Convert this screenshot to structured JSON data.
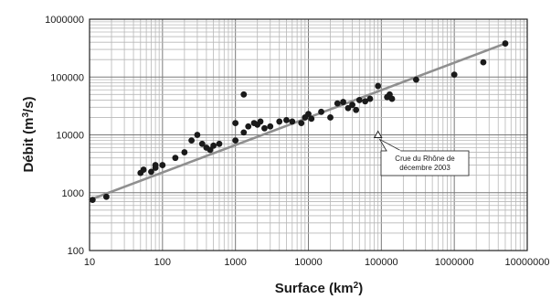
{
  "chart_data": {
    "type": "scatter",
    "title": "",
    "xlabel": "Surface",
    "xlabel_unit_base": "km",
    "xlabel_unit_exp": "2",
    "ylabel": "Débit",
    "ylabel_unit_base": "m",
    "ylabel_unit_exp": "3",
    "ylabel_unit_tail": "/s",
    "x_scale": "log",
    "y_scale": "log",
    "xlim": [
      10,
      10000000
    ],
    "ylim": [
      100,
      1000000
    ],
    "x_ticks": [
      "10",
      "100",
      "1000",
      "10000",
      "100000",
      "1000000",
      "10000000"
    ],
    "y_ticks": [
      "100",
      "1000",
      "10000",
      "100000",
      "1000000"
    ],
    "grid": true,
    "colors": {
      "points": "#1a1a1a",
      "trend": "#8f8f8f",
      "grid": "#b8b8b8",
      "axis": "#222222"
    },
    "series": [
      {
        "points": [
          [
            11,
            750
          ],
          [
            17,
            850
          ],
          [
            50,
            2200
          ],
          [
            55,
            2500
          ],
          [
            70,
            2300
          ],
          [
            80,
            2700
          ],
          [
            80,
            3000
          ],
          [
            100,
            3000
          ],
          [
            150,
            4000
          ],
          [
            200,
            5000
          ],
          [
            250,
            8000
          ],
          [
            300,
            10000
          ],
          [
            350,
            7000
          ],
          [
            400,
            6000
          ],
          [
            450,
            5500
          ],
          [
            500,
            6500
          ],
          [
            600,
            7000
          ],
          [
            1000,
            8000
          ],
          [
            1000,
            16000
          ],
          [
            1300,
            50000
          ],
          [
            1300,
            11000
          ],
          [
            1500,
            14000
          ],
          [
            1800,
            16000
          ],
          [
            2000,
            15000
          ],
          [
            2200,
            17000
          ],
          [
            2500,
            13000
          ],
          [
            3000,
            14000
          ],
          [
            4000,
            17000
          ],
          [
            5000,
            18000
          ],
          [
            6000,
            17000
          ],
          [
            8000,
            16000
          ],
          [
            9000,
            20000
          ],
          [
            10000,
            23000
          ],
          [
            11000,
            19000
          ],
          [
            15000,
            25000
          ],
          [
            20000,
            20000
          ],
          [
            25000,
            35000
          ],
          [
            30000,
            37000
          ],
          [
            35000,
            29000
          ],
          [
            40000,
            33000
          ],
          [
            45000,
            27000
          ],
          [
            50000,
            40000
          ],
          [
            60000,
            38000
          ],
          [
            70000,
            42000
          ],
          [
            90000,
            70000
          ],
          [
            120000,
            45000
          ],
          [
            130000,
            50000
          ],
          [
            140000,
            42000
          ],
          [
            300000,
            90000
          ],
          [
            1000000,
            110000
          ],
          [
            2500000,
            180000
          ],
          [
            5000000,
            380000
          ]
        ]
      }
    ],
    "trend_line": {
      "from": [
        10,
        750
      ],
      "to": [
        5000000,
        380000
      ]
    },
    "annotation": {
      "point": [
        90000,
        10000
      ],
      "lines": [
        "Crue du Rhône de",
        "décembre 2003"
      ]
    }
  }
}
